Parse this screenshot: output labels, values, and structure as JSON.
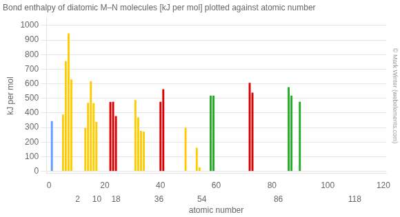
{
  "chart_data": {
    "type": "bar",
    "title": "Bond enthalpy of diatomic M–N molecules [kJ per mol] plotted against atomic number",
    "ylabel": "kJ per mol",
    "xlabel": "atomic number",
    "x": [
      1,
      5,
      6,
      7,
      8,
      13,
      14,
      15,
      16,
      17,
      22,
      23,
      24,
      31,
      32,
      33,
      34,
      40,
      41,
      49,
      53,
      54,
      58,
      59,
      72,
      73,
      86,
      87,
      90
    ],
    "values": [
      344,
      389,
      755,
      945,
      630,
      297,
      470,
      617,
      467,
      338,
      476,
      477,
      379,
      489,
      370,
      277,
      272,
      477,
      563,
      298,
      161,
      26,
      519,
      519,
      607,
      539,
      577,
      519,
      477
    ],
    "colors": [
      "#6699ff",
      "#ffcc00",
      "#ffcc00",
      "#ffcc00",
      "#ffcc00",
      "#ffcc00",
      "#ffcc00",
      "#ffcc00",
      "#ffcc00",
      "#ffcc00",
      "#dd0000",
      "#dd0000",
      "#dd0000",
      "#ffcc00",
      "#ffcc00",
      "#ffcc00",
      "#ffcc00",
      "#dd0000",
      "#dd0000",
      "#ffcc00",
      "#ffcc00",
      "#ffcc00",
      "#22aa22",
      "#22aa22",
      "#dd0000",
      "#dd0000",
      "#22aa22",
      "#22aa22",
      "#22aa22"
    ],
    "xlim": [
      -1,
      121
    ],
    "xticks": [
      0,
      20,
      40,
      60,
      80,
      100,
      120
    ],
    "x2ticks": [
      2,
      10,
      18,
      36,
      54,
      86,
      118
    ],
    "ylim": [
      -15,
      1050
    ],
    "yticks": [
      0,
      100,
      200,
      300,
      400,
      500,
      600,
      700,
      800,
      900,
      1000
    ],
    "grid": true,
    "annotations": [
      "© Mark Winter (webelements.com)"
    ]
  }
}
